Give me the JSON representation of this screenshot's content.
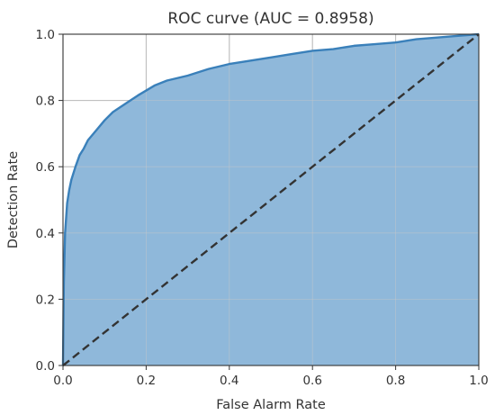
{
  "chart_data": {
    "type": "area",
    "title": "ROC curve (AUC = 0.8958)",
    "xlabel": "False Alarm Rate",
    "ylabel": "Detection Rate",
    "xlim": [
      0.0,
      1.0
    ],
    "ylim": [
      0.0,
      1.0
    ],
    "xticks": [
      "0.0",
      "0.2",
      "0.4",
      "0.6",
      "0.8",
      "1.0"
    ],
    "yticks": [
      "0.0",
      "0.2",
      "0.4",
      "0.6",
      "0.8",
      "1.0"
    ],
    "grid": true,
    "legend": "none",
    "series": [
      {
        "style": "solid-filled",
        "color": "#3a80ba",
        "fill_color": "#8fb8da",
        "x": [
          0.0,
          0.002,
          0.005,
          0.01,
          0.015,
          0.02,
          0.03,
          0.04,
          0.05,
          0.06,
          0.08,
          0.1,
          0.12,
          0.15,
          0.18,
          0.2,
          0.22,
          0.25,
          0.3,
          0.35,
          0.4,
          0.45,
          0.5,
          0.55,
          0.6,
          0.65,
          0.7,
          0.75,
          0.8,
          0.85,
          0.9,
          0.95,
          1.0
        ],
        "y": [
          0.0,
          0.25,
          0.4,
          0.49,
          0.53,
          0.56,
          0.6,
          0.635,
          0.655,
          0.68,
          0.71,
          0.74,
          0.765,
          0.79,
          0.815,
          0.83,
          0.845,
          0.86,
          0.875,
          0.895,
          0.91,
          0.92,
          0.93,
          0.94,
          0.95,
          0.955,
          0.965,
          0.97,
          0.975,
          0.985,
          0.99,
          0.995,
          1.0
        ]
      },
      {
        "style": "dashed",
        "color": "#333333",
        "x": [
          0.0,
          1.0
        ],
        "y": [
          0.0,
          1.0
        ]
      }
    ]
  }
}
